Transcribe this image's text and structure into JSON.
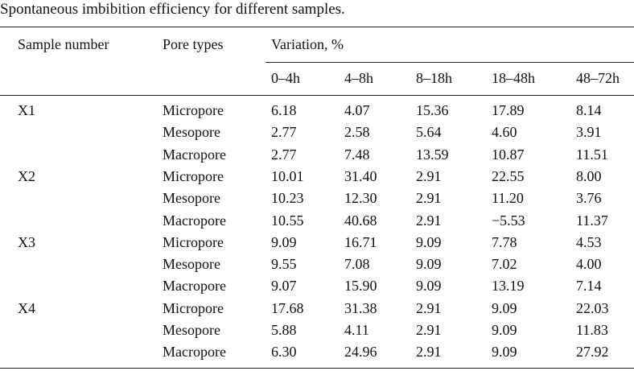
{
  "title": "Spontaneous imbibition efficiency for different samples.",
  "header": {
    "sample": "Sample number",
    "pore": "Pore types",
    "variation": "Variation, %",
    "periods": [
      "0–4h",
      "4–8h",
      "8–18h",
      "18–48h",
      "48–72h"
    ]
  },
  "groups": [
    {
      "sample": "X1",
      "rows": [
        [
          "Micropore",
          "6.18",
          "4.07",
          "15.36",
          "17.89",
          "8.14"
        ],
        [
          "Mesopore",
          "2.77",
          "2.58",
          "5.64",
          "4.60",
          "3.91"
        ],
        [
          "Macropore",
          "2.77",
          "7.48",
          "13.59",
          "10.87",
          "11.51"
        ]
      ]
    },
    {
      "sample": "X2",
      "rows": [
        [
          "Micropore",
          "10.01",
          "31.40",
          "2.91",
          "22.55",
          "8.00"
        ],
        [
          "Mesopore",
          "10.23",
          "12.30",
          "2.91",
          "11.20",
          "3.76"
        ],
        [
          "Macropore",
          "10.55",
          "40.68",
          "2.91",
          "−5.53",
          "11.37"
        ]
      ]
    },
    {
      "sample": "X3",
      "rows": [
        [
          "Micropore",
          "9.09",
          "16.71",
          "9.09",
          "7.78",
          "4.53"
        ],
        [
          "Mesopore",
          "9.55",
          "7.08",
          "9.09",
          "7.02",
          "4.00"
        ],
        [
          "Macropore",
          "9.07",
          "15.90",
          "9.09",
          "13.19",
          "7.14"
        ]
      ]
    },
    {
      "sample": "X4",
      "rows": [
        [
          "Micropore",
          "17.68",
          "31.38",
          "2.91",
          "9.09",
          "22.03"
        ],
        [
          "Mesopore",
          "5.88",
          "4.11",
          "2.91",
          "9.09",
          "11.83"
        ],
        [
          "Macropore",
          "6.30",
          "24.96",
          "2.91",
          "9.09",
          "27.92"
        ]
      ]
    }
  ]
}
